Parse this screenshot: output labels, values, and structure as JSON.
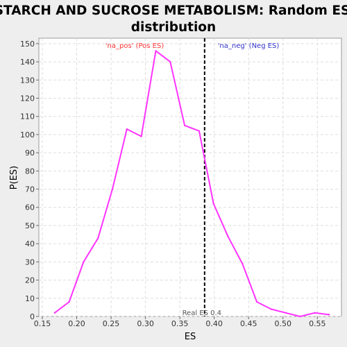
{
  "chart_data": {
    "type": "line",
    "title_lines": [
      "STARCH AND SUCROSE METABOLISM: Random ES",
      "distribution"
    ],
    "xlabel": "ES",
    "ylabel": "P(ES)",
    "xlim": [
      0.145,
      0.585
    ],
    "ylim": [
      0,
      153
    ],
    "x_ticks": [
      0.15,
      0.2,
      0.25,
      0.3,
      0.35,
      0.4,
      0.45,
      0.5,
      0.55
    ],
    "x_tick_labels": [
      "0.15",
      "0.20",
      "0.25",
      "0.30",
      "0.35",
      "0.40",
      "0.45",
      "0.50",
      "0.55"
    ],
    "y_ticks": [
      0,
      10,
      20,
      30,
      40,
      50,
      60,
      70,
      80,
      90,
      100,
      110,
      120,
      130,
      140,
      150
    ],
    "y_tick_labels": [
      "0",
      "10",
      "20",
      "30",
      "40",
      "50",
      "60",
      "70",
      "80",
      "90",
      "100",
      "110",
      "120",
      "130",
      "140",
      "150"
    ],
    "grid": true,
    "series": [
      {
        "color": "#ff33ff",
        "x": [
          0.168,
          0.189,
          0.21,
          0.231,
          0.252,
          0.273,
          0.294,
          0.315,
          0.336,
          0.357,
          0.378,
          0.399,
          0.42,
          0.441,
          0.462,
          0.483,
          0.504,
          0.525,
          0.546,
          0.567
        ],
        "y": [
          2,
          8,
          30,
          43,
          70,
          103,
          99,
          146,
          140,
          105,
          102,
          62,
          44,
          29,
          8,
          4,
          2,
          0,
          2,
          1
        ]
      }
    ],
    "real_es": {
      "x": 0.386,
      "label": "Real ES 0.4",
      "color": "#000000"
    },
    "annotations": [
      {
        "text": "'na_pos' (Pos ES)",
        "color": "#ff3333"
      },
      {
        "text": "'na_neg' (Neg ES)",
        "color": "#3333cc"
      }
    ]
  }
}
